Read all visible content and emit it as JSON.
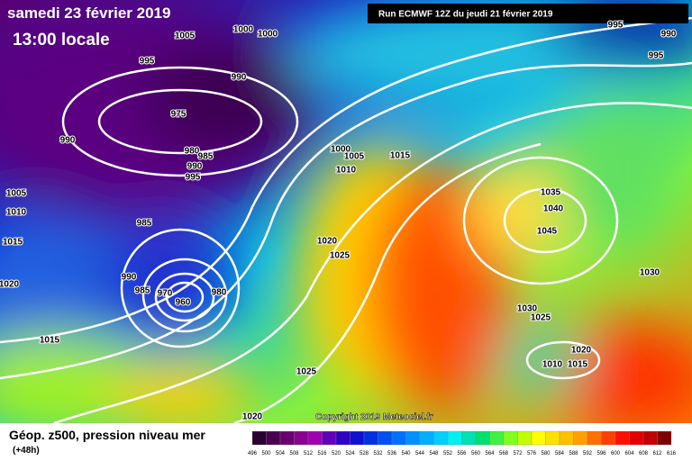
{
  "header": {
    "date": "samedi 23 février 2019",
    "time": "13:00 locale",
    "run": "Run ECMWF 12Z du jeudi 21 février 2019"
  },
  "copyright": "Copyright 2019 Meteociel.fr",
  "footer": {
    "title": "Géop. z500, pression niveau mer",
    "lead": "(+48h)"
  },
  "isobar_labels": [
    "1005",
    "1000",
    "1000",
    "995",
    "990",
    "975",
    "990",
    "980",
    "985",
    "990",
    "995",
    "1000",
    "1005",
    "1015",
    "1010",
    "1005",
    "1010",
    "985",
    "1015",
    "1020",
    "1025",
    "990",
    "985",
    "970",
    "960",
    "980",
    "1020",
    "1015",
    "1035",
    "1040",
    "1045",
    "1030",
    "1030",
    "1025",
    "1020",
    "1010",
    "1015",
    "1025",
    "1020",
    "995",
    "990",
    "995"
  ],
  "colorbar": {
    "labels": [
      496,
      500,
      504,
      508,
      512,
      516,
      520,
      524,
      528,
      532,
      536,
      540,
      544,
      548,
      552,
      556,
      560,
      564,
      568,
      572,
      576,
      580,
      584,
      588,
      592,
      596,
      600,
      604,
      608,
      612,
      616
    ],
    "colors": [
      "#2a0030",
      "#4a0050",
      "#6a0070",
      "#8a0090",
      "#a000b0",
      "#6000b8",
      "#3000c0",
      "#1010d0",
      "#0030e0",
      "#0050f0",
      "#0070ff",
      "#0090ff",
      "#00b0ff",
      "#00d0ff",
      "#00f0f0",
      "#00e0b0",
      "#00e070",
      "#40f040",
      "#80ff20",
      "#c0ff00",
      "#ffff00",
      "#ffe000",
      "#ffc000",
      "#ffa000",
      "#ff7000",
      "#ff4000",
      "#ff1000",
      "#e00000",
      "#c00000",
      "#800000"
    ]
  }
}
